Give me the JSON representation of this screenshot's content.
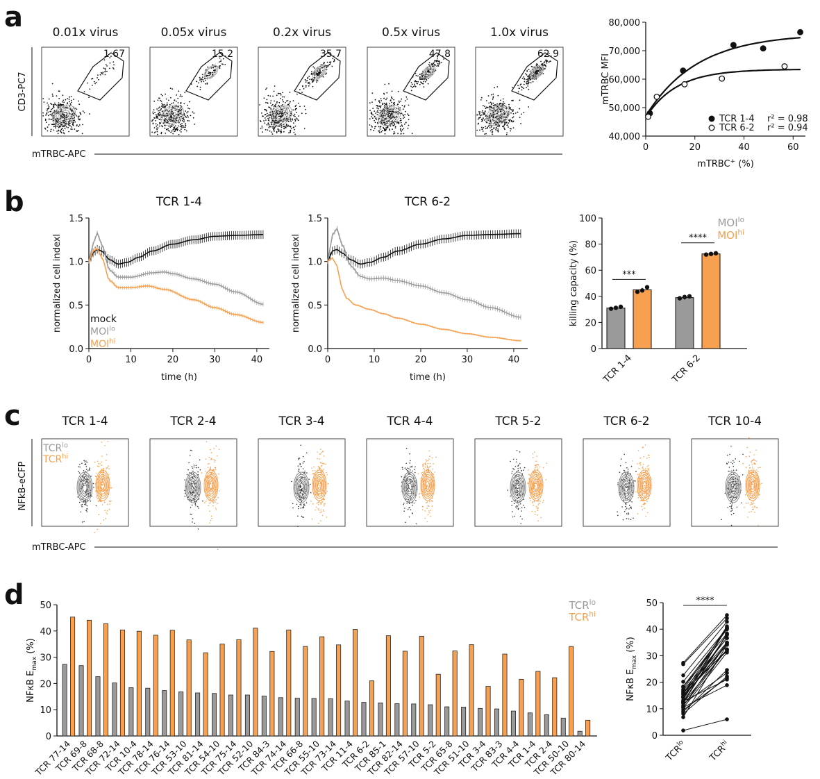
{
  "colors": {
    "gray": "#9a9a9a",
    "orange": "#f7a04f",
    "black": "#111111",
    "dark_gray": "#555555"
  },
  "panels": {
    "a": "a",
    "b": "b",
    "c": "c",
    "d": "d"
  },
  "flow_a": {
    "titles": [
      "0.01x virus",
      "0.05x virus",
      "0.2x virus",
      "0.5x virus",
      "1.0x virus"
    ],
    "values": [
      "1.67",
      "15.2",
      "35.7",
      "47.8",
      "62.9"
    ],
    "ylabel": "CD3-PC7",
    "xlabel": "mTRBC-APC"
  },
  "flow_c": {
    "titles": [
      "TCR 1-4",
      "TCR 2-4",
      "TCR 3-4",
      "TCR 4-4",
      "TCR 5-2",
      "TCR 6-2",
      "TCR 10-4"
    ],
    "legend_lo": "TCR",
    "legend_lo_sup": "lo",
    "legend_hi": "TCR",
    "legend_hi_sup": "hi",
    "ylabel": "NFkB-eCFP",
    "xlabel": "mTRBC-APC"
  },
  "chart_data": [
    {
      "id": "a_scatter",
      "type": "scatter",
      "xlabel": "mTRBC",
      "xlabel_sup": "+",
      "xlabel_suffix": " (%)",
      "ylabel": "mTRBC MFI",
      "xlim": [
        0,
        65
      ],
      "ylim": [
        40000,
        80000
      ],
      "xticks": [
        0,
        20,
        40,
        60
      ],
      "yticks": [
        40000,
        50000,
        60000,
        70000,
        80000
      ],
      "ytick_labels": [
        "40,000",
        "50,000",
        "60,000",
        "70,000",
        "80,000"
      ],
      "series": [
        {
          "name": "TCR 1-4",
          "marker": "filled",
          "r2": "r² = 0.98",
          "x": [
            1.67,
            15.2,
            35.7,
            47.8,
            62.9
          ],
          "y": [
            48000,
            63000,
            72000,
            70800,
            76500
          ],
          "fit": {
            "y0": 47000,
            "plateau": 76000,
            "k": 0.048
          }
        },
        {
          "name": "TCR 6-2",
          "marker": "open",
          "r2": "r² = 0.94",
          "x": [
            1.0,
            4.5,
            15.8,
            31.0,
            56.5
          ],
          "y": [
            46800,
            53800,
            58200,
            60200,
            64500
          ],
          "fit": {
            "y0": 46500,
            "plateau": 63500,
            "k": 0.08
          }
        }
      ]
    },
    {
      "id": "b_tcr14",
      "type": "line",
      "title": "TCR 1-4",
      "xlabel": "time (h)",
      "ylabel": "normalized cell indexl",
      "xlim": [
        0,
        43
      ],
      "ylim": [
        0,
        1.5
      ],
      "xticks": [
        0,
        10,
        20,
        30,
        40
      ],
      "yticks": [
        0.0,
        0.5,
        1.0,
        1.5
      ],
      "ytick_labels": [
        "0.0",
        "0.5",
        "1.0",
        "1.5"
      ],
      "legend": [
        "mock",
        "MOI",
        "MOI"
      ],
      "legend_sup": [
        "",
        "lo",
        "hi"
      ],
      "series": [
        {
          "name": "mock",
          "color": "black",
          "x": [
            0,
            1,
            2,
            3,
            5,
            7,
            9,
            12,
            15,
            20,
            25,
            30,
            35,
            41.5
          ],
          "y": [
            1.0,
            1.1,
            1.14,
            1.12,
            1.02,
            0.97,
            0.99,
            1.05,
            1.12,
            1.2,
            1.25,
            1.29,
            1.3,
            1.31
          ],
          "err": 0.05
        },
        {
          "name": "MOIlo",
          "color": "gray",
          "x": [
            0,
            1,
            2,
            3,
            5,
            7,
            10,
            15,
            18,
            20,
            25,
            30,
            35,
            41.5
          ],
          "y": [
            1.0,
            1.2,
            1.33,
            1.2,
            0.9,
            0.82,
            0.82,
            0.87,
            0.88,
            0.86,
            0.8,
            0.74,
            0.65,
            0.51
          ],
          "err": 0.025
        },
        {
          "name": "MOIhi",
          "color": "orange",
          "x": [
            0,
            1,
            2,
            3,
            5,
            7,
            10,
            14,
            18,
            25,
            30,
            35,
            41.5
          ],
          "y": [
            1.0,
            1.12,
            1.15,
            1.05,
            0.78,
            0.7,
            0.7,
            0.72,
            0.68,
            0.56,
            0.47,
            0.39,
            0.3
          ],
          "err": 0.02
        }
      ]
    },
    {
      "id": "b_tcr62",
      "type": "line",
      "title": "TCR 6-2",
      "xlabel": "time (h)",
      "ylabel": "normalized cell indexl",
      "xlim": [
        0,
        43
      ],
      "ylim": [
        0,
        1.5
      ],
      "xticks": [
        0,
        10,
        20,
        30,
        40
      ],
      "yticks": [
        0.0,
        0.5,
        1.0,
        1.5
      ],
      "ytick_labels": [
        "0.0",
        "0.5",
        "1.0",
        "1.5"
      ],
      "series": [
        {
          "name": "mock",
          "color": "black",
          "x": [
            0,
            1,
            2,
            3,
            5,
            7,
            9,
            12,
            15,
            20,
            25,
            30,
            35,
            41.5
          ],
          "y": [
            1.0,
            1.12,
            1.14,
            1.1,
            1.02,
            0.97,
            0.99,
            1.05,
            1.12,
            1.2,
            1.26,
            1.3,
            1.31,
            1.32
          ],
          "err": 0.05
        },
        {
          "name": "MOIlo",
          "color": "gray",
          "x": [
            0,
            1,
            2,
            3,
            5,
            7,
            9,
            12,
            15,
            20,
            25,
            30,
            35,
            41.5
          ],
          "y": [
            1.0,
            1.3,
            1.38,
            1.2,
            0.95,
            0.83,
            0.8,
            0.81,
            0.78,
            0.72,
            0.64,
            0.56,
            0.47,
            0.36
          ],
          "err": 0.03
        },
        {
          "name": "MOIhi",
          "color": "orange",
          "x": [
            0,
            1,
            2,
            3,
            4,
            6,
            9,
            12,
            15,
            20,
            25,
            30,
            35,
            41.5
          ],
          "y": [
            1.0,
            1.04,
            0.95,
            0.7,
            0.58,
            0.5,
            0.45,
            0.4,
            0.35,
            0.28,
            0.22,
            0.17,
            0.13,
            0.09
          ],
          "err": 0.01
        }
      ]
    },
    {
      "id": "b_bar",
      "type": "bar",
      "ylabel": "killing capacity (%)",
      "ylim": [
        0,
        100
      ],
      "yticks": [
        0,
        20,
        40,
        60,
        80,
        100
      ],
      "categories": [
        "TCR 1-4",
        "TCR 6-2"
      ],
      "legend": [
        "MOI",
        "MOI"
      ],
      "legend_sup": [
        "lo",
        "hi"
      ],
      "series": [
        {
          "name": "MOIlo",
          "color": "gray",
          "values": [
            31,
            39
          ],
          "points": [
            [
              30.5,
              31.2,
              32
            ],
            [
              38.5,
              39.5,
              40
            ]
          ]
        },
        {
          "name": "MOIhi",
          "color": "orange",
          "values": [
            45,
            72.5
          ],
          "points": [
            [
              43.5,
              44.5,
              47
            ],
            [
              72,
              72.5,
              73
            ]
          ]
        }
      ],
      "significance": [
        "***",
        "****"
      ]
    },
    {
      "id": "d_bar",
      "type": "bar",
      "ylabel": "NFκB E",
      "ylabel_sub": "max",
      "ylabel_suffix": " (%)",
      "ylim": [
        0,
        50
      ],
      "yticks": [
        0,
        10,
        20,
        30,
        40,
        50
      ],
      "legend": [
        "TCR",
        "TCR"
      ],
      "legend_sup": [
        "lo",
        "hi"
      ],
      "categories": [
        "TCR 77-14",
        "TCR 69-8",
        "TCR 68-8",
        "TCR 72-14",
        "TCR 10-4",
        "TCR 78-14",
        "TCR 76-14",
        "TCR 53-10",
        "TCR 81-14",
        "TCR 54-10",
        "TCR 75-14",
        "TCR 52-10",
        "TCR 84-3",
        "TCR 74-14",
        "TCR 66-8",
        "TCR 55-10",
        "TCR 73-14",
        "TCR 11-4",
        "TCR 6-2",
        "TCR 85-1",
        "TCR 82-14",
        "TCR 57-10",
        "TCR 5-2",
        "TCR 65-8",
        "TCR 51-10",
        "TCR 3-4",
        "TCR 83-3",
        "TCR 4-4",
        "TCR 1-4",
        "TCR 2-4",
        "TCR 50-10",
        "TCR 80-14"
      ],
      "series": [
        {
          "name": "TCRlo",
          "color": "gray",
          "values": [
            27.3,
            26.8,
            22.6,
            20.2,
            18.4,
            18.2,
            17.3,
            16.8,
            16.4,
            16.2,
            15.6,
            15.6,
            15.2,
            14.6,
            14.4,
            14.3,
            14.2,
            13.3,
            12.8,
            12.6,
            12.3,
            12.2,
            11.9,
            11.1,
            11.0,
            10.5,
            10.3,
            9.5,
            8.8,
            8.1,
            6.8,
            1.8
          ]
        },
        {
          "name": "TCRhi",
          "color": "orange",
          "values": [
            45.3,
            44.1,
            42.8,
            40.4,
            39.9,
            38.4,
            40.3,
            36.6,
            31.7,
            35.0,
            36.7,
            41.1,
            32.2,
            40.4,
            34.1,
            37.8,
            34.7,
            40.6,
            21.0,
            38.2,
            32.3,
            38.0,
            23.5,
            32.4,
            34.8,
            18.9,
            31.2,
            21.6,
            24.6,
            22.2,
            34.1,
            6.0
          ]
        }
      ]
    },
    {
      "id": "d_paired",
      "type": "scatter",
      "ylabel": "NFκB E",
      "ylabel_sub": "max",
      "ylabel_suffix": " (%)",
      "ylim": [
        0,
        50
      ],
      "yticks": [
        0,
        10,
        20,
        30,
        40,
        50
      ],
      "categories": [
        "TCR",
        "TCR"
      ],
      "categories_sup": [
        "lo",
        "hi"
      ],
      "significance": "****"
    }
  ]
}
